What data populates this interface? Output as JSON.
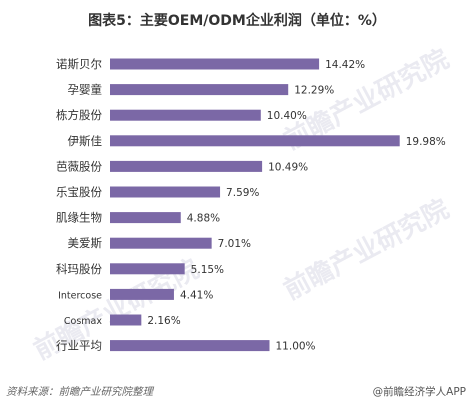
{
  "chart_data": {
    "type": "bar",
    "orientation": "horizontal",
    "title": "图表5：主要OEM/ODM企业利润（单位：%）",
    "categories": [
      "诺斯贝尔",
      "孕婴童",
      "栋方股份",
      "伊斯佳",
      "芭薇股份",
      "乐宝股份",
      "肌缘生物",
      "美爱斯",
      "科玛股份",
      "Intercose",
      "Cosmax",
      "行业平均"
    ],
    "values": [
      14.42,
      12.29,
      10.4,
      19.98,
      10.49,
      7.59,
      4.88,
      7.01,
      5.15,
      4.41,
      2.16,
      11.0
    ],
    "value_labels": [
      "14.42%",
      "12.29%",
      "10.40%",
      "19.98%",
      "10.49%",
      "7.59%",
      "4.88%",
      "7.01%",
      "5.15%",
      "4.41%",
      "2.16%",
      "11.00%"
    ],
    "xlim": [
      0,
      20
    ],
    "grid": false,
    "bar_color": "#7b68a6"
  },
  "footer": {
    "source": "资料来源：前瞻产业研究院整理",
    "brand": "@前瞻经济学人APP"
  },
  "watermark": {
    "text": "前瞻产业研究院"
  }
}
